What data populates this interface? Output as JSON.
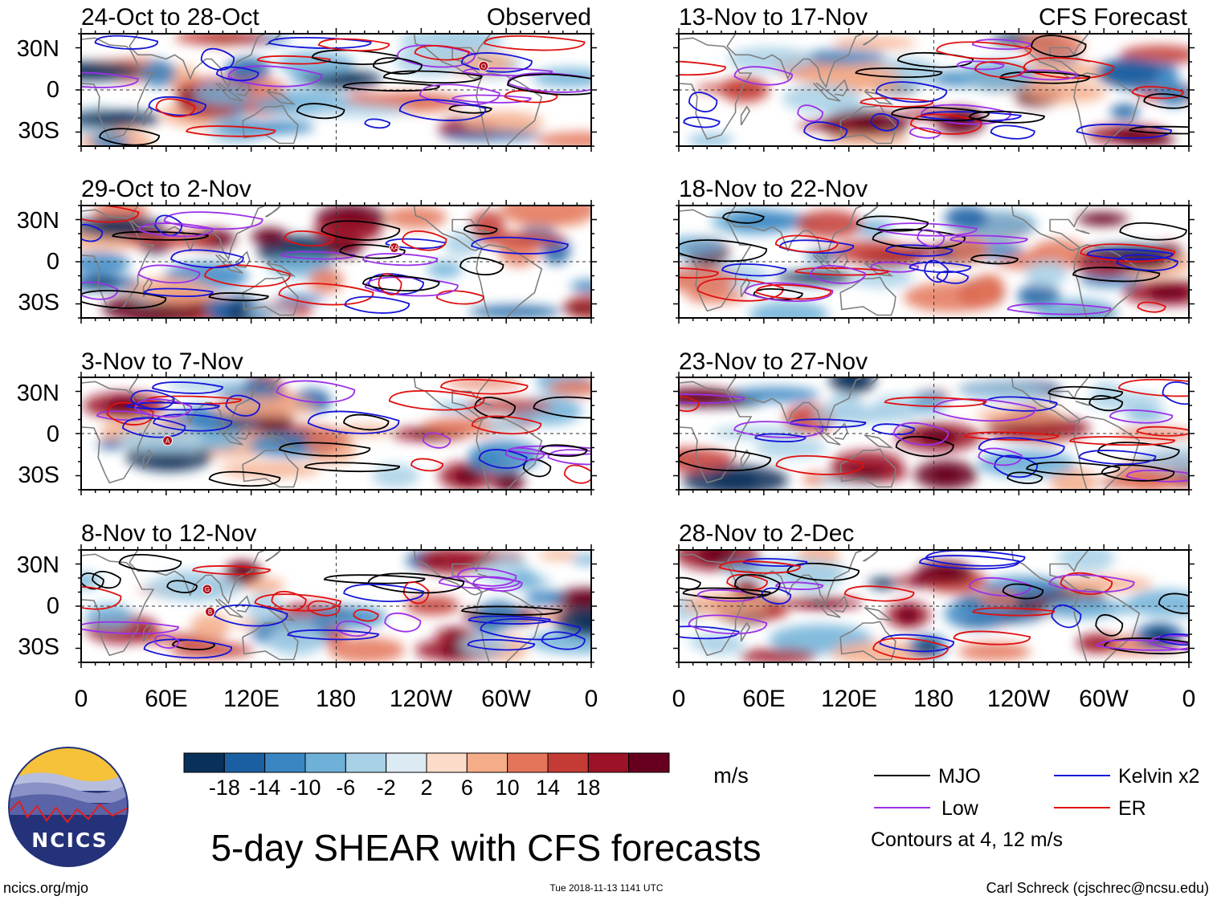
{
  "figure": {
    "main_title": "5-day SHEAR with CFS forecasts",
    "observed_label": "Observed",
    "forecast_label": "CFS Forecast",
    "website": "ncics.org/mjo",
    "timestamp": "Tue 2018-11-13 1141 UTC",
    "author": "Carl Schreck (cjschrec@ncsu.edu)",
    "logo_text": "NCICS",
    "colors": {
      "mjo": "#000000",
      "kelvin": "#1414d8",
      "low": "#9b30e8",
      "er": "#e01010",
      "land": "#7f7f7f",
      "frame": "#000000"
    }
  },
  "chart_data": {
    "type": "heatmap",
    "variable": "5-day vertical wind shear anomaly",
    "units": "m/s",
    "x_axis": {
      "ticks": [
        "0",
        "60E",
        "120E",
        "180",
        "120W",
        "60W",
        "0"
      ],
      "range": [
        0,
        360
      ]
    },
    "y_axis": {
      "ticks": [
        "30N",
        "0",
        "30S"
      ],
      "range": [
        -40,
        40
      ]
    },
    "colorbar": {
      "ticks": [
        "-18",
        "-14",
        "-10",
        "-6",
        "-2",
        "2",
        "6",
        "10",
        "14",
        "18"
      ],
      "colors": [
        "#08305a",
        "#1a5fa2",
        "#3a86c2",
        "#6fb0d8",
        "#a8d0e6",
        "#dbeaf3",
        "#ffffff",
        "#fcdcc8",
        "#f5ac88",
        "#e4755a",
        "#c33b34",
        "#9c1226",
        "#67001f"
      ]
    },
    "legend": [
      {
        "label": "MJO",
        "key": "mjo"
      },
      {
        "label": "Kelvin x2",
        "key": "kelvin"
      },
      {
        "label": "Low",
        "key": "low"
      },
      {
        "label": "ER",
        "key": "er"
      }
    ],
    "contours_note": "Contours at 4, 12 m/s",
    "panels": [
      {
        "title": "24-Oct to 28-Oct",
        "kind": "observed",
        "storms": [
          {
            "lon": 284,
            "lat": 17,
            "label": "O"
          }
        ]
      },
      {
        "title": "29-Oct to 2-Nov",
        "kind": "observed",
        "storms": [
          {
            "lon": 221,
            "lat": 10,
            "label": "XA"
          }
        ]
      },
      {
        "title": "3-Nov to 7-Nov",
        "kind": "observed",
        "storms": [
          {
            "lon": 61,
            "lat": -5,
            "label": "A"
          }
        ]
      },
      {
        "title": "8-Nov to 12-Nov",
        "kind": "observed",
        "storms": [
          {
            "lon": 89,
            "lat": 12,
            "label": "G"
          },
          {
            "lon": 91,
            "lat": -4,
            "label": "B"
          }
        ]
      },
      {
        "title": "13-Nov to 17-Nov",
        "kind": "forecast",
        "storms": []
      },
      {
        "title": "18-Nov to 22-Nov",
        "kind": "forecast",
        "storms": []
      },
      {
        "title": "23-Nov to 27-Nov",
        "kind": "forecast",
        "storms": []
      },
      {
        "title": "28-Nov to 2-Dec",
        "kind": "forecast",
        "storms": []
      }
    ]
  }
}
